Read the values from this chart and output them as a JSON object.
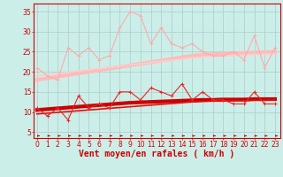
{
  "x": [
    0,
    1,
    2,
    3,
    4,
    5,
    6,
    7,
    8,
    9,
    10,
    11,
    12,
    13,
    14,
    15,
    16,
    17,
    18,
    19,
    20,
    21,
    22,
    23
  ],
  "series": [
    {
      "label": "rafales_jagged",
      "color": "#ffaaaa",
      "linewidth": 0.8,
      "marker": "+",
      "markersize": 3,
      "zorder": 3,
      "values": [
        21,
        19,
        18,
        26,
        24,
        26,
        23,
        24,
        31,
        35,
        34,
        27,
        31,
        27,
        26,
        27,
        25,
        24,
        24,
        25,
        23,
        29,
        21,
        26
      ]
    },
    {
      "label": "rafales_trend1",
      "color": "#ffbbbb",
      "linewidth": 3.0,
      "marker": null,
      "markersize": 0,
      "zorder": 2,
      "values": [
        18.0,
        18.4,
        18.8,
        19.2,
        19.6,
        20.0,
        20.4,
        20.8,
        21.2,
        21.6,
        22.0,
        22.4,
        22.8,
        23.2,
        23.6,
        24.0,
        24.2,
        24.4,
        24.5,
        24.6,
        24.7,
        24.8,
        24.9,
        25.0
      ]
    },
    {
      "label": "rafales_trend2",
      "color": "#ffcccc",
      "linewidth": 1.2,
      "marker": null,
      "markersize": 0,
      "zorder": 2,
      "values": [
        19.0,
        19.3,
        19.6,
        19.9,
        20.2,
        20.5,
        20.8,
        21.1,
        21.4,
        21.7,
        22.0,
        22.3,
        22.6,
        22.9,
        23.2,
        23.5,
        23.7,
        23.9,
        24.0,
        24.1,
        24.2,
        24.3,
        24.4,
        24.5
      ]
    },
    {
      "label": "moyen_jagged",
      "color": "#ee2222",
      "linewidth": 0.8,
      "marker": "+",
      "markersize": 3,
      "zorder": 3,
      "values": [
        11,
        9,
        11,
        8,
        14,
        11,
        12,
        11,
        15,
        15,
        13,
        16,
        15,
        14,
        17,
        13,
        15,
        13,
        13,
        12,
        12,
        15,
        12,
        12
      ]
    },
    {
      "label": "moyen_trend1",
      "color": "#cc0000",
      "linewidth": 3.0,
      "marker": null,
      "markersize": 0,
      "zorder": 2,
      "values": [
        10.5,
        10.7,
        10.9,
        11.1,
        11.3,
        11.5,
        11.7,
        11.9,
        12.1,
        12.3,
        12.4,
        12.5,
        12.6,
        12.7,
        12.8,
        12.9,
        13.0,
        13.0,
        13.1,
        13.1,
        13.1,
        13.2,
        13.2,
        13.2
      ]
    },
    {
      "label": "moyen_trend2",
      "color": "#dd1111",
      "linewidth": 1.2,
      "marker": null,
      "markersize": 0,
      "zorder": 2,
      "values": [
        9.5,
        9.7,
        9.9,
        10.1,
        10.3,
        10.5,
        10.7,
        10.9,
        11.1,
        11.3,
        11.5,
        11.7,
        11.9,
        12.1,
        12.3,
        12.5,
        12.6,
        12.7,
        12.7,
        12.8,
        12.8,
        12.9,
        12.9,
        13.0
      ]
    }
  ],
  "xlabel": "Vent moyen/en rafales ( km/h )",
  "xlabel_color": "#cc0000",
  "xlabel_fontsize": 7,
  "yticks": [
    5,
    10,
    15,
    20,
    25,
    30,
    35
  ],
  "xtick_labels": [
    "0",
    "1",
    "2",
    "3",
    "4",
    "5",
    "6",
    "7",
    "8",
    "9",
    "10",
    "11",
    "12",
    "13",
    "14",
    "15",
    "16",
    "17",
    "18",
    "19",
    "20",
    "21",
    "22",
    "23"
  ],
  "xlim": [
    -0.3,
    23.5
  ],
  "ylim": [
    3.5,
    37
  ],
  "background_color": "#cceee8",
  "grid_color": "#aacccc",
  "tick_color": "#cc0000",
  "tick_fontsize": 5.5,
  "arrow_color": "#cc0000"
}
